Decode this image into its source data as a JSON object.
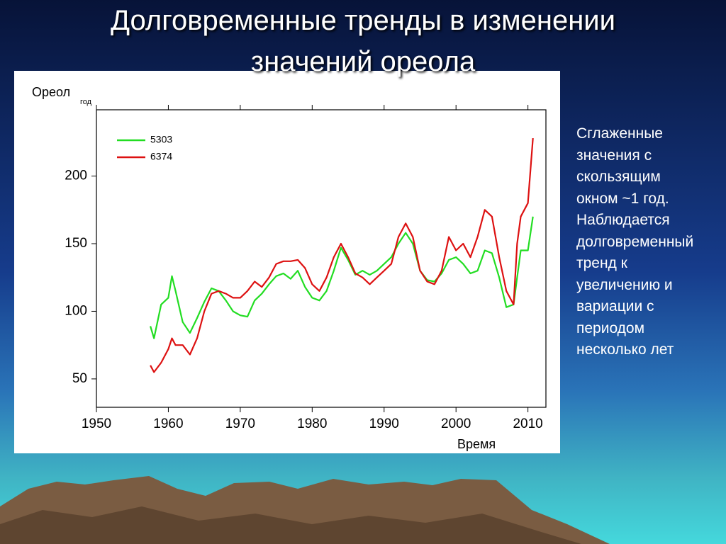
{
  "slide": {
    "title": "Долговременные тренды в изменении значений ореола",
    "note": [
      "Сглаженные",
      "значения с",
      "скользящим",
      "окном ~1 год.",
      "Наблюдается",
      "долговременный",
      "тренд к",
      "увеличению и",
      "вариации с",
      "периодом",
      "несколько лет"
    ]
  },
  "chart_data": {
    "type": "line",
    "y_label": "Ореол",
    "y_label_subscript": "год",
    "x_label": "Время",
    "x": [
      1957.5,
      1958,
      1959,
      1960,
      1960.5,
      1961,
      1962,
      1963,
      1964,
      1965,
      1966,
      1967,
      1968,
      1969,
      1970,
      1971,
      1972,
      1973,
      1974,
      1975,
      1976,
      1977,
      1978,
      1979,
      1980,
      1981,
      1982,
      1983,
      1984,
      1985,
      1986,
      1987,
      1988,
      1989,
      1990,
      1991,
      1992,
      1993,
      1994,
      1995,
      1996,
      1997,
      1998,
      1999,
      2000,
      2001,
      2002,
      2003,
      2004,
      2005,
      2006,
      2007,
      2008,
      2008.5,
      2009,
      2010,
      2010.7
    ],
    "series": [
      {
        "name": "5303",
        "color": "#22dd22",
        "values": [
          89,
          80,
          105,
          110,
          126,
          115,
          92,
          84,
          95,
          107,
          117,
          115,
          108,
          100,
          97,
          96,
          108,
          113,
          120,
          126,
          128,
          124,
          130,
          118,
          110,
          108,
          115,
          130,
          147,
          138,
          127,
          130,
          127,
          130,
          135,
          140,
          150,
          158,
          150,
          130,
          123,
          122,
          128,
          138,
          140,
          135,
          128,
          130,
          145,
          143,
          125,
          103,
          105,
          125,
          145,
          145,
          170
        ]
      },
      {
        "name": "6374",
        "color": "#dd1111",
        "values": [
          60,
          55,
          62,
          72,
          80,
          75,
          75,
          68,
          80,
          100,
          113,
          115,
          113,
          110,
          110,
          115,
          122,
          118,
          125,
          135,
          137,
          137,
          138,
          132,
          120,
          115,
          125,
          140,
          150,
          140,
          128,
          125,
          120,
          125,
          130,
          135,
          155,
          165,
          155,
          130,
          122,
          120,
          130,
          155,
          145,
          150,
          140,
          155,
          175,
          170,
          140,
          115,
          105,
          150,
          170,
          180,
          228
        ]
      }
    ],
    "xlim": [
      1950,
      2012.5
    ],
    "xticks": [
      1950,
      1960,
      1970,
      1980,
      1990,
      2000,
      2010
    ],
    "ylim": [
      29,
      249
    ],
    "yticks": [
      50,
      100,
      150,
      200
    ],
    "legend": "upper-left"
  }
}
